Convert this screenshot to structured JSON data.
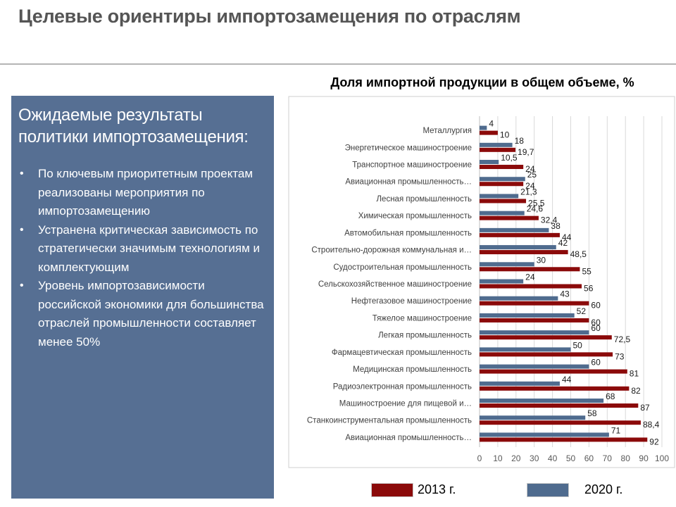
{
  "slide": {
    "title": "Целевые ориентиры импортозамещения по отраслям"
  },
  "panel": {
    "heading_line1": "Ожидаемые результаты",
    "heading_line2": "политики импортозамещения:",
    "bullets": [
      "По ключевым приоритетным проектам реализованы мероприятия по импортозамещению",
      "Устранена критическая зависимость по стратегически значимым технологиям и комплектующим",
      "Уровень импортозависимости российской экономики для большинства отраслей промышленности составляет менее 50%"
    ]
  },
  "chart_data": {
    "type": "bar",
    "orientation": "horizontal",
    "title": "Доля импортной продукции в общем объеме, %",
    "categories": [
      "Металлургия",
      "Энергетическое машиностроение",
      "Транспортное машиностроение",
      "Авиационная промышленность…",
      "Лесная промышленность",
      "Химическая промышленность",
      "Автомобильная промышленность",
      "Строительно-дорожная коммунальная и…",
      "Судостроительная промышленность",
      "Сельскохозяйственное машиностроение",
      "Нефтегазовое машиностроение",
      "Тяжелое машиностроение",
      "Легкая промышленность",
      "Фармацевтическая промышленность",
      "Медицинская промышленность",
      "Радиоэлектронная промышленность",
      "Машиностроение для пищевой и…",
      "Станкоинструментальная промышленность",
      "Авиационная промышленность…"
    ],
    "series": [
      {
        "name": "2013 г.",
        "color": "#8b0a0a",
        "values": [
          10,
          19.7,
          24,
          24,
          25.5,
          32.4,
          44,
          48.5,
          55,
          56,
          60,
          60,
          72.5,
          73,
          81,
          82,
          87,
          88.4,
          92
        ],
        "labels": [
          "10",
          "19,7",
          "24",
          "24",
          "25,5",
          "32,4",
          "44",
          "48,5",
          "55",
          "56",
          "60",
          "60",
          "72,5",
          "73",
          "81",
          "82",
          "87",
          "88,4",
          "92"
        ]
      },
      {
        "name": "2020 г.",
        "color": "#4f6b8e",
        "values": [
          4,
          18,
          10.5,
          25,
          21.3,
          24.6,
          38,
          42,
          30,
          24,
          43,
          52,
          60,
          50,
          60,
          44,
          68,
          58,
          71
        ],
        "labels": [
          "4",
          "18",
          "10,5",
          "25",
          "21,3",
          "24,6",
          "38",
          "42",
          "30",
          "24",
          "43",
          "52",
          "60",
          "50",
          "60",
          "44",
          "68",
          "58",
          "71"
        ]
      }
    ],
    "xlim": [
      0,
      100
    ],
    "xticks": [
      "0",
      "10",
      "20",
      "30",
      "40",
      "50",
      "60",
      "70",
      "80",
      "90",
      "100"
    ],
    "grid": true,
    "legend_position": "bottom"
  }
}
